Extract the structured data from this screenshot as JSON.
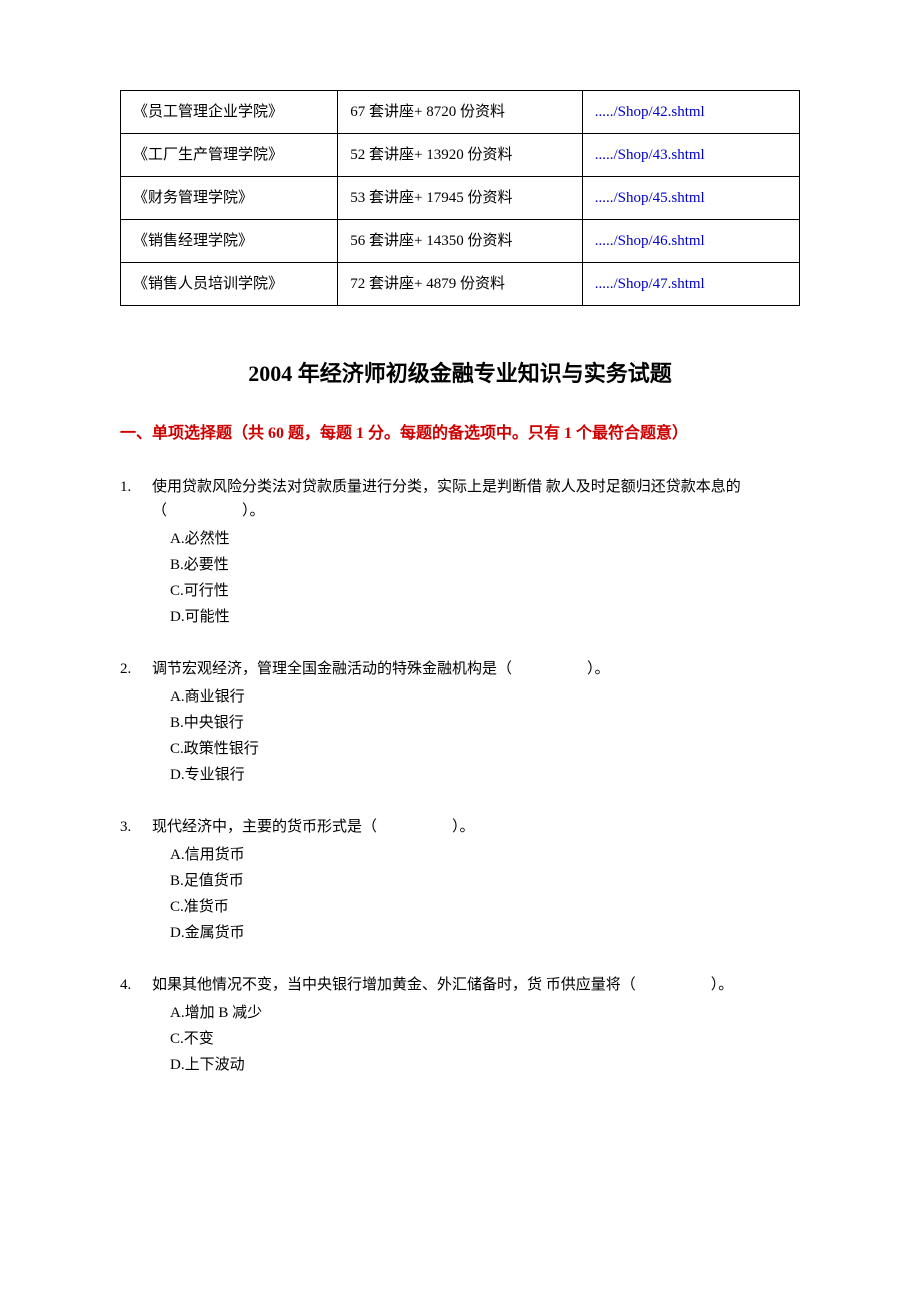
{
  "table": {
    "rows": [
      {
        "name": "《员工管理企业学院》",
        "count": "67 套讲座+ 8720 份资料",
        "link": "...../Shop/42.shtml"
      },
      {
        "name": "《工厂生产管理学院》",
        "count": "52 套讲座+ 13920 份资料",
        "link": "...../Shop/43.shtml"
      },
      {
        "name": "《财务管理学院》",
        "count": "53 套讲座+ 17945 份资料",
        "link": "...../Shop/45.shtml"
      },
      {
        "name": "《销售经理学院》",
        "count": "56 套讲座+ 14350 份资料",
        "link": "...../Shop/46.shtml"
      },
      {
        "name": "《销售人员培训学院》",
        "count": "72 套讲座+ 4879 份资料",
        "link": "...../Shop/47.shtml"
      }
    ]
  },
  "title": "2004 年经济师初级金融专业知识与实务试题",
  "section_header": "一、单项选择题（共 60 题，每题 1 分。每题的备选项中。只有 1 个最符合题意）",
  "questions": [
    {
      "num": "1.",
      "stem": "使用贷款风险分类法对贷款质量进行分类，实际上是判断借 款人及时足额归还贷款本息的（　　　　　）。",
      "opts": [
        "A.必然性",
        "B.必要性",
        "C.可行性",
        "D.可能性"
      ]
    },
    {
      "num": "2.",
      "stem": "调节宏观经济，管理全国金融活动的特殊金融机构是（　　　　　）。",
      "opts": [
        "A.商业银行",
        "B.中央银行",
        "C.政策性银行",
        "D.专业银行"
      ]
    },
    {
      "num": "3.",
      "stem": "现代经济中，主要的货币形式是（　　　　　）。",
      "opts": [
        "A.信用货币",
        "B.足值货币",
        "C.准货币",
        "D.金属货币"
      ]
    },
    {
      "num": "4.",
      "stem": "如果其他情况不变，当中央银行增加黄金、外汇储备时，货 币供应量将（　　　　　）。",
      "opts": [
        "A.增加 B 减少",
        "C.不变",
        "D.上下波动"
      ]
    }
  ]
}
